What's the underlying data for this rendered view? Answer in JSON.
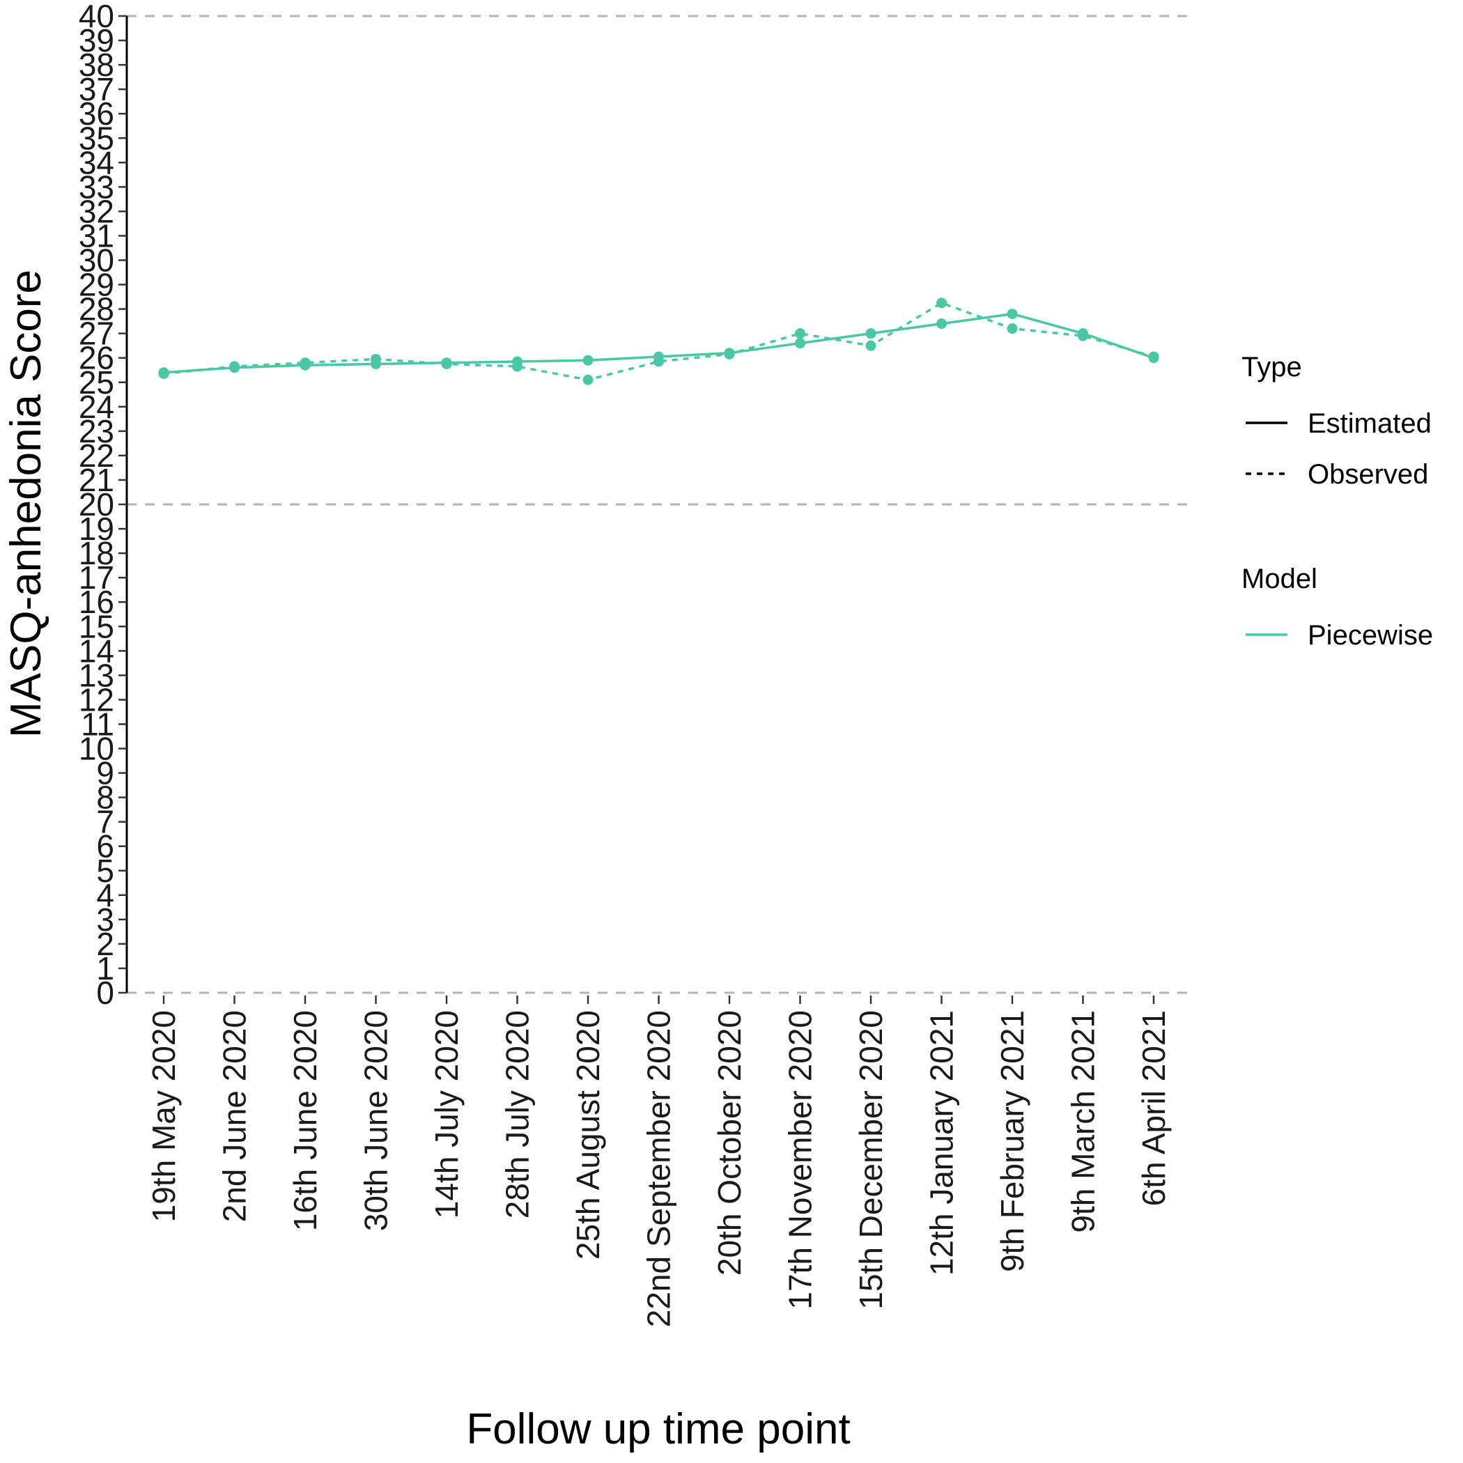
{
  "chart_data": {
    "type": "line",
    "xlabel": "Follow up time point",
    "ylabel": "MASQ-anhedonia Score",
    "ylim": [
      0,
      40
    ],
    "y_ticks": [
      0,
      1,
      2,
      3,
      4,
      5,
      6,
      7,
      8,
      9,
      10,
      11,
      12,
      13,
      14,
      15,
      16,
      17,
      18,
      19,
      20,
      21,
      22,
      23,
      24,
      25,
      26,
      27,
      28,
      29,
      30,
      31,
      32,
      33,
      34,
      35,
      36,
      37,
      38,
      39,
      40
    ],
    "reference_lines": [
      0,
      20,
      40
    ],
    "categories": [
      "19th May 2020",
      "2nd June 2020",
      "16th June 2020",
      "30th June 2020",
      "14th July 2020",
      "28th July 2020",
      "25th August 2020",
      "22nd September 2020",
      "20th October 2020",
      "17th November 2020",
      "15th December 2020",
      "12th January 2021",
      "9th February 2021",
      "9th March 2021",
      "6th April 2021"
    ],
    "series": [
      {
        "name": "Estimated",
        "model": "Piecewise",
        "linetype": "solid",
        "values": [
          25.4,
          25.6,
          25.7,
          25.75,
          25.8,
          25.85,
          25.9,
          26.05,
          26.2,
          26.6,
          27.0,
          27.4,
          27.8,
          27.0,
          26.0
        ]
      },
      {
        "name": "Observed",
        "model": "Piecewise",
        "linetype": "dotted",
        "values": [
          25.35,
          25.65,
          25.8,
          25.95,
          25.75,
          25.65,
          25.1,
          25.85,
          26.15,
          27.0,
          26.5,
          28.25,
          27.2,
          26.9,
          26.05
        ]
      }
    ],
    "color": "#4ac8a4",
    "legend": {
      "position": "right",
      "type_title": "Type",
      "type_items": [
        "Estimated",
        "Observed"
      ],
      "model_title": "Model",
      "model_items": [
        "Piecewise"
      ]
    }
  }
}
